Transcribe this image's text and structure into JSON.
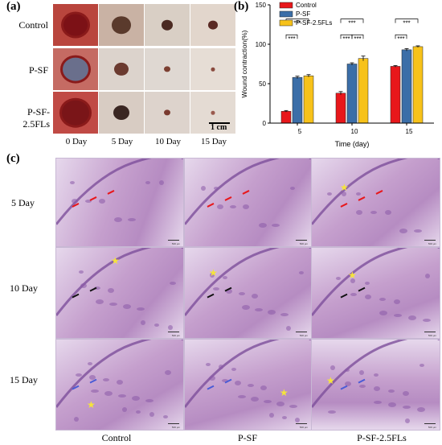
{
  "panel_a": {
    "label": "(a)",
    "rows": [
      "Control",
      "P-SF",
      "P-SF-2.5FLs"
    ],
    "columns": [
      "0 Day",
      "5 Day",
      "10 Day",
      "15 Day"
    ],
    "scale_bar": "1 cm"
  },
  "panel_b": {
    "label": "(b)"
  },
  "panel_c": {
    "label": "(c)",
    "rows": [
      "5 Day",
      "10 Day",
      "15 Day"
    ],
    "columns": [
      "Control",
      "P-SF",
      "P-SF-2.5FLs"
    ],
    "scale_text": "500 μm"
  },
  "colors": {
    "control": "#e8171b",
    "psf": "#3b6ea8",
    "psf25": "#f7c21a",
    "he_bg": "#e6d8ec",
    "he_tissue": "#c59fcd",
    "he_edge": "#7d4f9b",
    "star": "#f5e43a",
    "red_arrow": "#e8171b",
    "black_arrow": "#111111",
    "blue_arrow": "#4a5bd6"
  },
  "chart_data": {
    "type": "bar",
    "categories": [
      "5",
      "10",
      "15"
    ],
    "series": [
      {
        "name": "Control",
        "values": [
          15,
          38,
          72
        ],
        "errors": [
          1,
          2,
          1
        ]
      },
      {
        "name": "P-SF",
        "values": [
          58,
          75,
          93
        ],
        "errors": [
          1.5,
          1.5,
          1.5
        ]
      },
      {
        "name": "P-SF-2.5FLs",
        "values": [
          60,
          82,
          97
        ],
        "errors": [
          1.5,
          3,
          1
        ]
      }
    ],
    "xlabel": "Time (day)",
    "ylabel": "Wound contraction(%)",
    "ylim": [
      0,
      150
    ],
    "yticks": [
      "0",
      "50",
      "100",
      "150"
    ],
    "significance_label": "***",
    "legend_position": "top-left"
  }
}
